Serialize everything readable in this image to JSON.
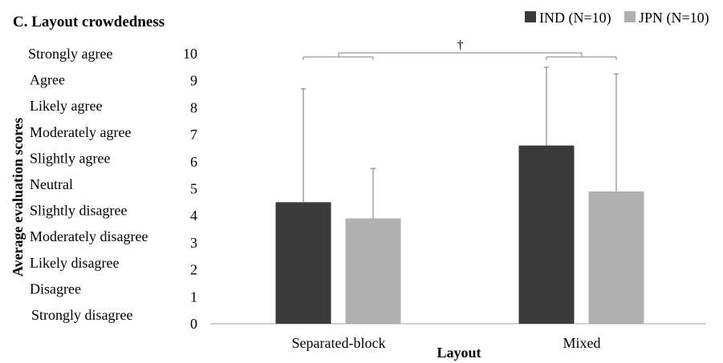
{
  "chart_data": {
    "type": "bar",
    "title": "C. Layout crowdedness",
    "xlabel": "Layout",
    "ylabel": "Average evaluation scores",
    "ylim": [
      0,
      10
    ],
    "yticks": [
      0,
      1,
      2,
      3,
      4,
      5,
      6,
      7,
      8,
      9,
      10
    ],
    "categories": [
      "Separated-block",
      "Mixed"
    ],
    "series": [
      {
        "name": "IND (N=10)",
        "color": "#3a3a3a",
        "values": [
          4.5,
          6.6
        ],
        "error_plus": [
          4.2,
          2.9
        ]
      },
      {
        "name": "JPN (N=10)",
        "color": "#b0b0b0",
        "values": [
          3.9,
          4.9
        ],
        "error_plus": [
          1.85,
          4.35
        ]
      }
    ],
    "scale_labels": [
      "Strongly agree",
      "Agree",
      "Likely agree",
      "Moderately agree",
      "Slightly agree",
      "Neutral",
      "Slightly disagree",
      "Moderately disagree",
      "Likely disagree",
      "Disagree",
      "Strongly disagree"
    ],
    "significance": {
      "symbol": "†",
      "between": [
        "Separated-block",
        "Mixed"
      ]
    },
    "legend_position": "top-right",
    "grid": false
  }
}
